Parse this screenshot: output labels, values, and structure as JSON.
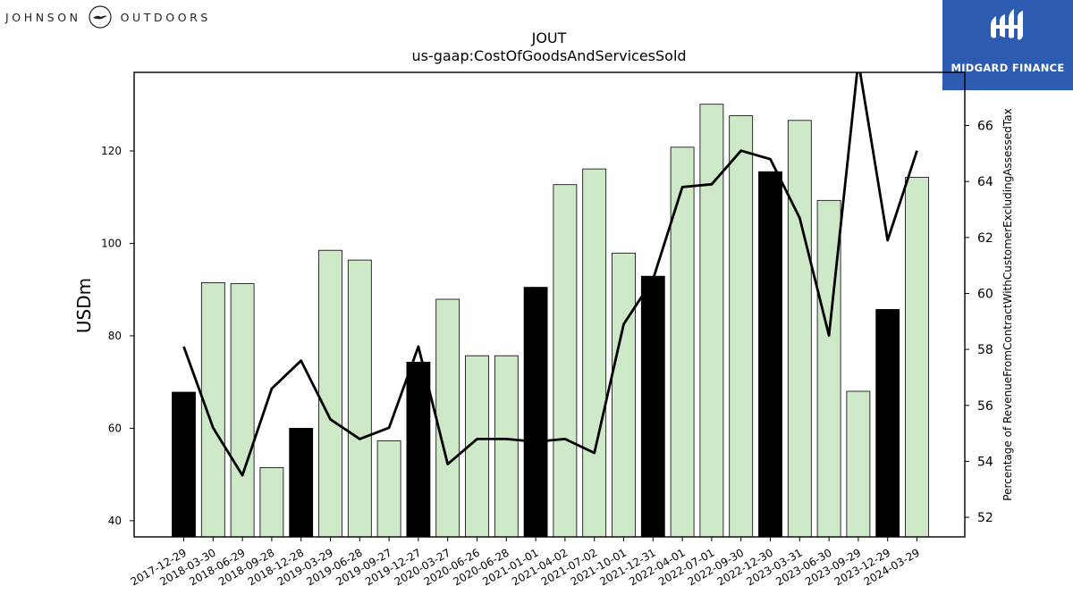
{
  "branding": {
    "left_word_1": "JOHNSON",
    "left_word_2": "OUTDOORS",
    "right_name": "MIDGARD FINANCE",
    "right_bg": "#2d5bb0"
  },
  "chart_data": {
    "type": "bar",
    "title": "JOUT",
    "subtitle": "us-gaap:CostOfGoodsAndServicesSold",
    "ylabel": "USDm",
    "y2label": "Percentage of RevenueFromContractWithCustomerExcludingAssessedTax",
    "ylim": [
      36.5,
      137
    ],
    "y2lim": [
      51.3,
      67.9
    ],
    "yticks": [
      40,
      60,
      80,
      100,
      120
    ],
    "y2ticks": [
      52,
      54,
      56,
      58,
      60,
      62,
      64,
      66
    ],
    "categories": [
      "2017-12-29",
      "2018-03-30",
      "2018-06-29",
      "2018-09-28",
      "2018-12-28",
      "2019-03-29",
      "2019-06-28",
      "2019-09-27",
      "2019-12-27",
      "2020-03-27",
      "2020-06-26",
      "2020-06-28",
      "2021-01-01",
      "2021-04-02",
      "2021-07-02",
      "2021-10-01",
      "2021-12-31",
      "2022-04-01",
      "2022-07-01",
      "2022-09-30",
      "2022-12-30",
      "2023-03-31",
      "2023-06-30",
      "2023-09-29",
      "2023-12-29",
      "2024-03-29"
    ],
    "values": [
      67.8,
      91.5,
      91.3,
      51.5,
      60.0,
      98.5,
      96.4,
      57.3,
      74.3,
      87.9,
      75.7,
      75.7,
      90.5,
      112.7,
      116.1,
      97.9,
      92.9,
      120.8,
      130.1,
      127.6,
      115.5,
      126.6,
      109.3,
      68.0,
      85.7,
      114.3
    ],
    "highlight": [
      true,
      false,
      false,
      false,
      true,
      false,
      false,
      false,
      true,
      false,
      false,
      false,
      true,
      false,
      false,
      false,
      true,
      false,
      false,
      false,
      true,
      false,
      false,
      false,
      true,
      false
    ],
    "line_values": [
      58.1,
      55.2,
      53.5,
      56.6,
      57.6,
      55.5,
      54.8,
      55.2,
      58.1,
      53.9,
      54.8,
      54.8,
      54.7,
      54.8,
      54.3,
      58.9,
      60.5,
      63.8,
      63.9,
      65.1,
      64.8,
      62.7,
      58.5,
      68.3,
      61.9,
      65.1
    ],
    "colors": {
      "bar": "#cde9c7",
      "bar_highlight": "#000000",
      "line": "#000000"
    },
    "grid": false
  }
}
